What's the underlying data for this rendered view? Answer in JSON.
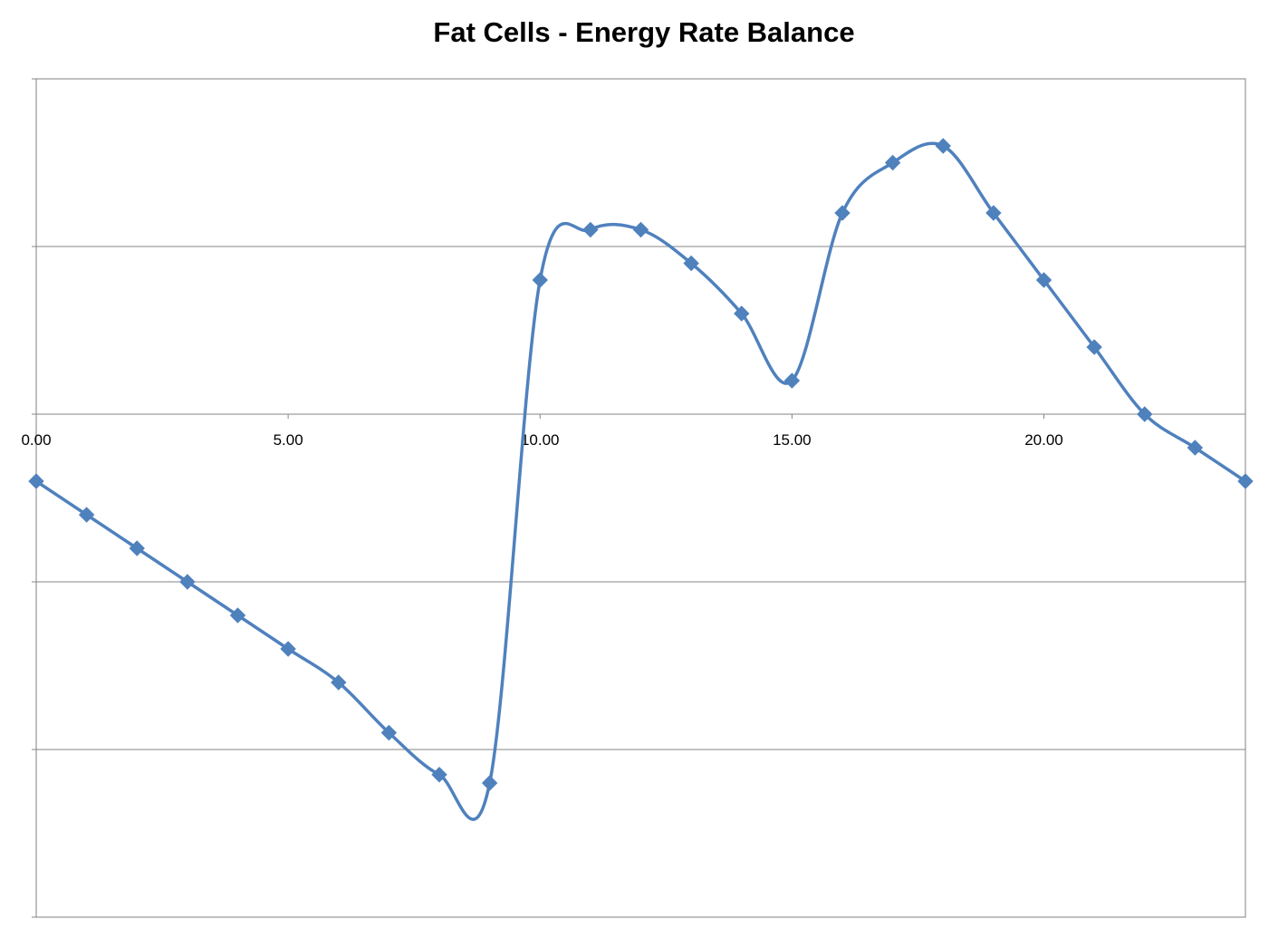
{
  "chart_data": {
    "type": "line",
    "title": "Fat Cells - Energy Rate Balance",
    "xlabel": "",
    "ylabel": "",
    "xlim": [
      0,
      24
    ],
    "ylim": [
      -3,
      2
    ],
    "y_gridlines": [
      -2,
      -1,
      0,
      1
    ],
    "x_ticks": [
      0,
      5,
      10,
      15,
      20
    ],
    "x_tick_labels": [
      "0.00",
      "5.00",
      "10.00",
      "15.00",
      "20.00"
    ],
    "y_tick_labels_shown": false,
    "grid": true,
    "legend": "none",
    "smooth": true,
    "marker": "diamond",
    "series": [
      {
        "color": "#4F81BD",
        "x": [
          0,
          1,
          2,
          3,
          4,
          5,
          6,
          7,
          8,
          9,
          10,
          11,
          12,
          13,
          14,
          15,
          16,
          17,
          18,
          19,
          20,
          21,
          22,
          23,
          24
        ],
        "y": [
          -0.4,
          -0.6,
          -0.8,
          -1.0,
          -1.2,
          -1.4,
          -1.6,
          -1.9,
          -2.15,
          -2.2,
          0.8,
          1.1,
          1.1,
          0.9,
          0.6,
          0.2,
          1.2,
          1.5,
          1.6,
          1.2,
          0.8,
          0.4,
          0.0,
          -0.2,
          -0.4
        ]
      }
    ]
  }
}
